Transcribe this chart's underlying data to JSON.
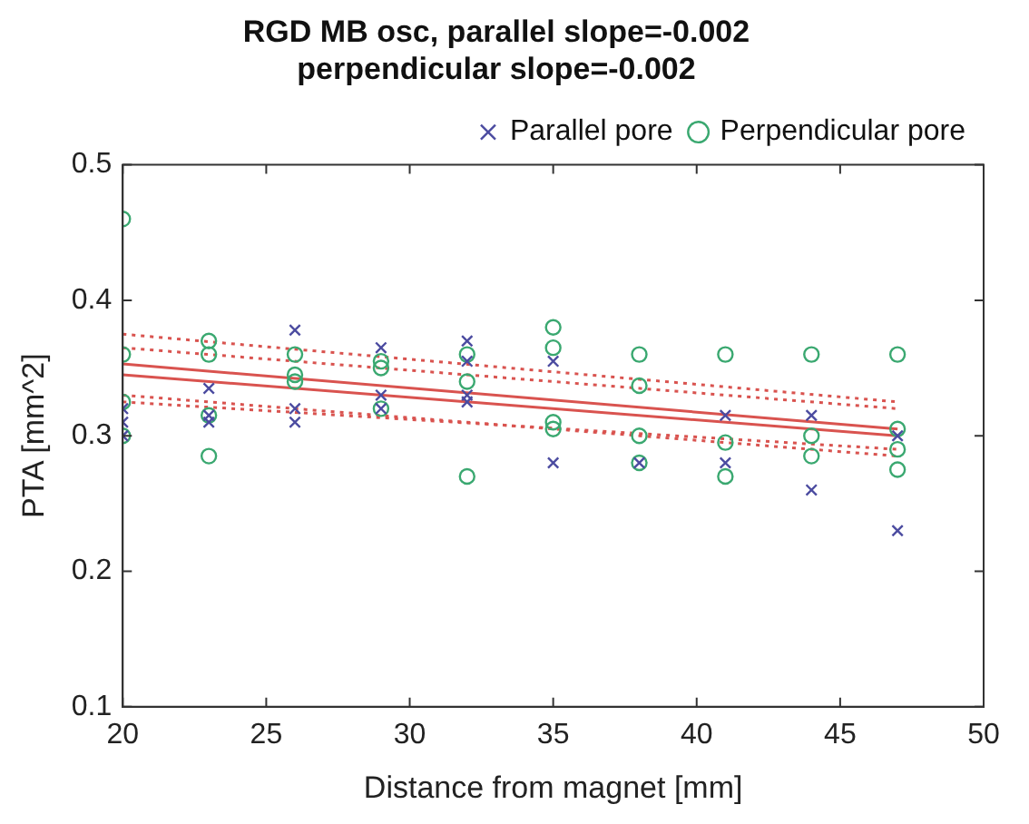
{
  "chart_data": {
    "type": "scatter",
    "title": "RGD MB osc, parallel slope=-0.002",
    "subtitle": "perpendicular slope=-0.002",
    "xlabel": "Distance from magnet [mm]",
    "ylabel": "PTA [mm^2]",
    "xlim": [
      20,
      50
    ],
    "xticks": [
      20,
      25,
      30,
      35,
      40,
      45,
      50
    ],
    "ylim": [
      0.1,
      0.5
    ],
    "yticks": [
      0.1,
      0.2,
      0.3,
      0.4,
      0.5
    ],
    "grid": false,
    "legend": "top right",
    "series": [
      {
        "name": "Parallel pore",
        "color": "#4b4ba0",
        "marker": "cross",
        "x": [
          20,
          20,
          20,
          23,
          23,
          23,
          26,
          26,
          26,
          29,
          29,
          29,
          32,
          32,
          32,
          32,
          35,
          35,
          38,
          41,
          41,
          44,
          44,
          47,
          47
        ],
        "values": [
          0.3,
          0.31,
          0.32,
          0.335,
          0.315,
          0.31,
          0.378,
          0.32,
          0.31,
          0.365,
          0.33,
          0.32,
          0.37,
          0.355,
          0.33,
          0.325,
          0.355,
          0.28,
          0.28,
          0.315,
          0.28,
          0.315,
          0.26,
          0.3,
          0.23
        ]
      },
      {
        "name": "Perpendicular pore",
        "color": "#3aa870",
        "marker": "circle",
        "x": [
          20,
          20,
          20,
          20,
          23,
          23,
          23,
          23,
          26,
          26,
          26,
          29,
          29,
          29,
          32,
          32,
          32,
          35,
          35,
          35,
          35,
          38,
          38,
          38,
          38,
          41,
          41,
          41,
          44,
          44,
          44,
          47,
          47,
          47,
          47
        ],
        "values": [
          0.46,
          0.36,
          0.325,
          0.3,
          0.37,
          0.36,
          0.315,
          0.285,
          0.36,
          0.345,
          0.34,
          0.355,
          0.35,
          0.32,
          0.36,
          0.34,
          0.27,
          0.38,
          0.365,
          0.31,
          0.305,
          0.36,
          0.337,
          0.3,
          0.28,
          0.36,
          0.295,
          0.27,
          0.36,
          0.3,
          0.285,
          0.36,
          0.305,
          0.29,
          0.275
        ]
      },
      {
        "type": "line",
        "color": "#d9534f",
        "x": [
          20,
          47
        ],
        "values": [
          0.353,
          0.305
        ]
      },
      {
        "type": "line",
        "color": "#d9534f",
        "x": [
          20,
          47
        ],
        "values": [
          0.345,
          0.3
        ]
      },
      {
        "type": "line",
        "color": "#d9534f",
        "line_style": "dotted",
        "x": [
          20,
          47
        ],
        "values": [
          0.375,
          0.325
        ]
      },
      {
        "type": "line",
        "color": "#d9534f",
        "line_style": "dotted",
        "x": [
          20,
          47
        ],
        "values": [
          0.33,
          0.285
        ]
      },
      {
        "type": "line",
        "color": "#d9534f",
        "line_style": "dotted",
        "x": [
          20,
          47
        ],
        "values": [
          0.365,
          0.32
        ]
      },
      {
        "type": "line",
        "color": "#d9534f",
        "line_style": "dotted",
        "x": [
          20,
          47
        ],
        "values": [
          0.325,
          0.29
        ]
      }
    ]
  }
}
